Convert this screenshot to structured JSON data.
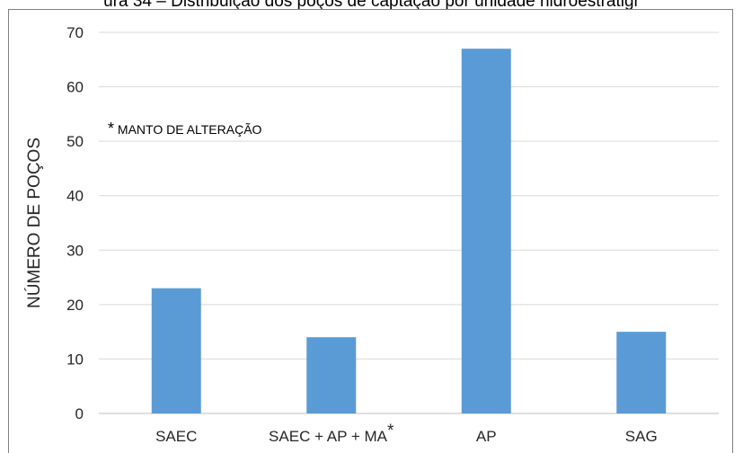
{
  "figure": {
    "caption": "ura 34 – Distribuição dos poços de captação por unidade hidroestratigr",
    "note_star": "*",
    "note_text": "MANTO DE ALTERAÇÃO"
  },
  "colors": {
    "bar": "#5b9bd5",
    "grid": "#d9d9d9",
    "axis": "#bfbfbf",
    "text": "#262626"
  },
  "chart_data": {
    "type": "bar",
    "title": "",
    "xlabel": "",
    "ylabel": "NÚMERO DE POÇOS",
    "categories": [
      "SAEC",
      "SAEC + AP + MA*",
      "AP",
      "SAG"
    ],
    "values": [
      23,
      14,
      67,
      15
    ],
    "ylim": [
      0,
      70
    ],
    "yticks": [
      0,
      10,
      20,
      30,
      40,
      50,
      60,
      70
    ],
    "grid": true,
    "legend": "none"
  }
}
